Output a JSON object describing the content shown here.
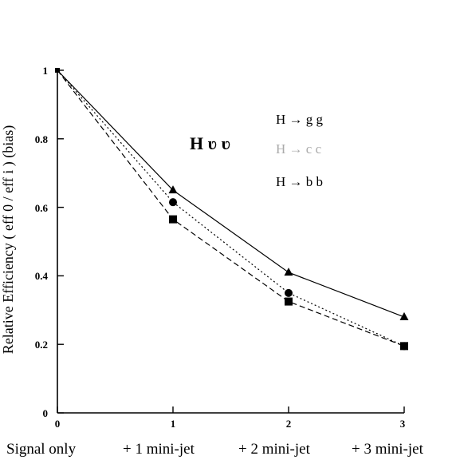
{
  "chart_data": {
    "type": "line",
    "title": "H ʋ ʋ",
    "ylabel": "Relative   Efficiency   ( eff 0 / eff i )   (bias)",
    "x": [
      0,
      1,
      2,
      3
    ],
    "x_tick_labels": [
      "0",
      "1",
      "2",
      "3"
    ],
    "y_tick_labels": [
      "0",
      "0.2",
      "0.4",
      "0.6",
      "0.8",
      "1"
    ],
    "category_labels": [
      "Signal only",
      "+ 1  mini-jet",
      "+ 2  mini-jet",
      "+ 3  mini-jet"
    ],
    "xlim": [
      0,
      3
    ],
    "ylim": [
      0,
      1
    ],
    "grid": false,
    "legend_position": "top-right",
    "series": [
      {
        "name": "H → g g",
        "marker": "triangle",
        "line": "solid",
        "color": "#000000",
        "values": [
          1.0,
          0.65,
          0.41,
          0.28
        ]
      },
      {
        "name": "H → c c",
        "marker": "circle",
        "line": "dotted",
        "color": "#000000",
        "values": [
          1.0,
          0.615,
          0.35,
          0.195
        ]
      },
      {
        "name": "H → b b",
        "marker": "square",
        "line": "dashed",
        "color": "#000000",
        "values": [
          1.0,
          0.565,
          0.325,
          0.195
        ]
      }
    ]
  }
}
